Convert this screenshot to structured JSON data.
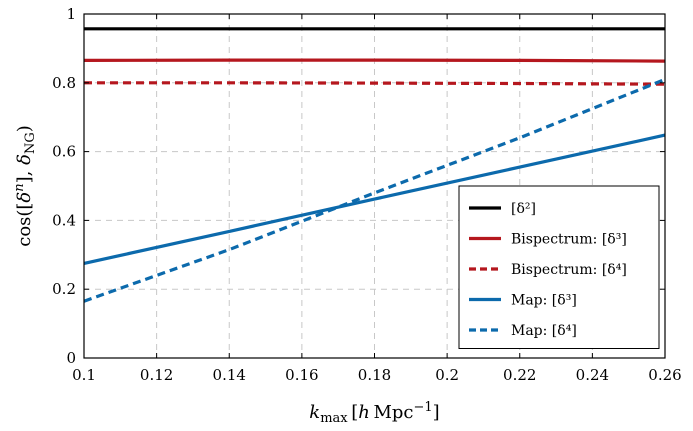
{
  "chart_data": {
    "type": "line",
    "title": "",
    "xlabel": "k_max [h Mpc^-1]",
    "ylabel": "cos([δ^n], δ_NG)",
    "xlim": [
      0.1,
      0.26
    ],
    "ylim": [
      0,
      1
    ],
    "xticks": [
      "0.1",
      "0.12",
      "0.14",
      "0.16",
      "0.18",
      "0.2",
      "0.22",
      "0.24",
      "0.26"
    ],
    "yticks": [
      "0",
      "0.2",
      "0.4",
      "0.6",
      "0.8",
      "1"
    ],
    "grid": true,
    "legend_position": "bottom-right",
    "series": [
      {
        "name": "[δ²]",
        "color": "#000000",
        "dash": "solid",
        "x": [
          0.1,
          0.14,
          0.18,
          0.22,
          0.26
        ],
        "y": [
          0.957,
          0.957,
          0.957,
          0.957,
          0.957
        ]
      },
      {
        "name": "Bispectrum: [δ³]",
        "color": "#b5171e",
        "dash": "solid",
        "x": [
          0.1,
          0.14,
          0.18,
          0.22,
          0.26
        ],
        "y": [
          0.865,
          0.866,
          0.866,
          0.865,
          0.863
        ]
      },
      {
        "name": "Bispectrum: [δ⁴]",
        "color": "#b5171e",
        "dash": "dashed",
        "x": [
          0.1,
          0.14,
          0.18,
          0.22,
          0.26
        ],
        "y": [
          0.8,
          0.8,
          0.799,
          0.798,
          0.796
        ]
      },
      {
        "name": "Map: [δ³]",
        "color": "#0c6aac",
        "dash": "solid",
        "x": [
          0.1,
          0.14,
          0.18,
          0.22,
          0.26
        ],
        "y": [
          0.275,
          0.368,
          0.462,
          0.555,
          0.648
        ]
      },
      {
        "name": "Map: [δ⁴]",
        "color": "#0c6aac",
        "dash": "dashed",
        "x": [
          0.1,
          0.14,
          0.18,
          0.22,
          0.26
        ],
        "y": [
          0.165,
          0.315,
          0.48,
          0.64,
          0.81
        ]
      }
    ]
  }
}
